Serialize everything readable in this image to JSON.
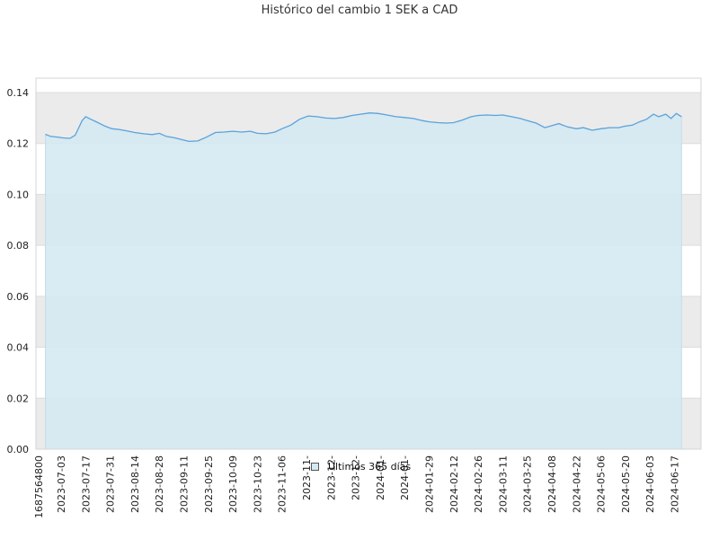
{
  "chart_data": {
    "type": "area",
    "title": "Histórico del cambio 1 SEK a CAD",
    "ylim": [
      0,
      0.14
    ],
    "yticks": [
      "0.00",
      "0.02",
      "0.04",
      "0.06",
      "0.08",
      "0.10",
      "0.12",
      "0.14"
    ],
    "xticks": [
      "1687564800",
      "2023-07-03",
      "2023-07-17",
      "2023-07-31",
      "2023-08-14",
      "2023-08-28",
      "2023-09-11",
      "2023-09-25",
      "2023-10-09",
      "2023-10-23",
      "2023-11-06",
      "2023-11-",
      "2023-12-",
      "2023-12-",
      "2024-01-",
      "2024-01-",
      "2024-01-29",
      "2024-02-12",
      "2024-02-26",
      "2024-03-11",
      "2024-03-25",
      "2024-04-08",
      "2024-04-22",
      "2024-05-06",
      "2024-05-20",
      "2024-06-03",
      "2024-06-17"
    ],
    "grid": true,
    "legend_position": "bottom-center",
    "colors": {
      "line": "#5ba3db",
      "fill": "#d5e9f2",
      "band": "#ebebeb"
    },
    "series": [
      {
        "name": "Últimos 365 días",
        "points": [
          [
            "2023-06-24",
            0.1236
          ],
          [
            "2023-06-27",
            0.1228
          ],
          [
            "2023-07-01",
            0.1225
          ],
          [
            "2023-07-04",
            0.1222
          ],
          [
            "2023-07-08",
            0.122
          ],
          [
            "2023-07-11",
            0.1232
          ],
          [
            "2023-07-15",
            0.129
          ],
          [
            "2023-07-17",
            0.1305
          ],
          [
            "2023-07-20",
            0.1295
          ],
          [
            "2023-07-24",
            0.1282
          ],
          [
            "2023-07-28",
            0.1268
          ],
          [
            "2023-08-01",
            0.1258
          ],
          [
            "2023-08-05",
            0.1255
          ],
          [
            "2023-08-09",
            0.125
          ],
          [
            "2023-08-14",
            0.1243
          ],
          [
            "2023-08-19",
            0.1238
          ],
          [
            "2023-08-24",
            0.1235
          ],
          [
            "2023-08-28",
            0.124
          ],
          [
            "2023-09-01",
            0.1228
          ],
          [
            "2023-09-06",
            0.1222
          ],
          [
            "2023-09-10",
            0.1215
          ],
          [
            "2023-09-14",
            0.1208
          ],
          [
            "2023-09-19",
            0.121
          ],
          [
            "2023-09-24",
            0.1225
          ],
          [
            "2023-09-29",
            0.1243
          ],
          [
            "2023-10-04",
            0.1245
          ],
          [
            "2023-10-09",
            0.1248
          ],
          [
            "2023-10-14",
            0.1245
          ],
          [
            "2023-10-19",
            0.1248
          ],
          [
            "2023-10-23",
            0.124
          ],
          [
            "2023-10-28",
            0.1238
          ],
          [
            "2023-11-02",
            0.1245
          ],
          [
            "2023-11-06",
            0.1258
          ],
          [
            "2023-11-11",
            0.1272
          ],
          [
            "2023-11-16",
            0.1295
          ],
          [
            "2023-11-21",
            0.1308
          ],
          [
            "2023-11-26",
            0.1305
          ],
          [
            "2023-12-01",
            0.13
          ],
          [
            "2023-12-06",
            0.1298
          ],
          [
            "2023-12-11",
            0.1302
          ],
          [
            "2023-12-16",
            0.131
          ],
          [
            "2023-12-21",
            0.1315
          ],
          [
            "2023-12-26",
            0.132
          ],
          [
            "2023-12-31",
            0.1318
          ],
          [
            "2024-01-05",
            0.1312
          ],
          [
            "2024-01-10",
            0.1305
          ],
          [
            "2024-01-15",
            0.1302
          ],
          [
            "2024-01-20",
            0.1298
          ],
          [
            "2024-01-25",
            0.129
          ],
          [
            "2024-01-29",
            0.1285
          ],
          [
            "2024-02-03",
            0.1282
          ],
          [
            "2024-02-08",
            0.128
          ],
          [
            "2024-02-12",
            0.1282
          ],
          [
            "2024-02-17",
            0.1292
          ],
          [
            "2024-02-22",
            0.1305
          ],
          [
            "2024-02-26",
            0.131
          ],
          [
            "2024-03-02",
            0.1312
          ],
          [
            "2024-03-07",
            0.131
          ],
          [
            "2024-03-11",
            0.1312
          ],
          [
            "2024-03-16",
            0.1305
          ],
          [
            "2024-03-21",
            0.1298
          ],
          [
            "2024-03-25",
            0.129
          ],
          [
            "2024-03-30",
            0.128
          ],
          [
            "2024-04-04",
            0.1262
          ],
          [
            "2024-04-08",
            0.127
          ],
          [
            "2024-04-12",
            0.1278
          ],
          [
            "2024-04-17",
            0.1265
          ],
          [
            "2024-04-22",
            0.1258
          ],
          [
            "2024-04-26",
            0.1262
          ],
          [
            "2024-05-01",
            0.1252
          ],
          [
            "2024-05-06",
            0.1258
          ],
          [
            "2024-05-11",
            0.1262
          ],
          [
            "2024-05-16",
            0.1262
          ],
          [
            "2024-05-20",
            0.1268
          ],
          [
            "2024-05-24",
            0.1272
          ],
          [
            "2024-05-28",
            0.1285
          ],
          [
            "2024-06-01",
            0.1295
          ],
          [
            "2024-06-05",
            0.1315
          ],
          [
            "2024-06-08",
            0.1305
          ],
          [
            "2024-06-12",
            0.1315
          ],
          [
            "2024-06-15",
            0.1298
          ],
          [
            "2024-06-18",
            0.1318
          ],
          [
            "2024-06-21",
            0.1305
          ]
        ]
      }
    ]
  }
}
